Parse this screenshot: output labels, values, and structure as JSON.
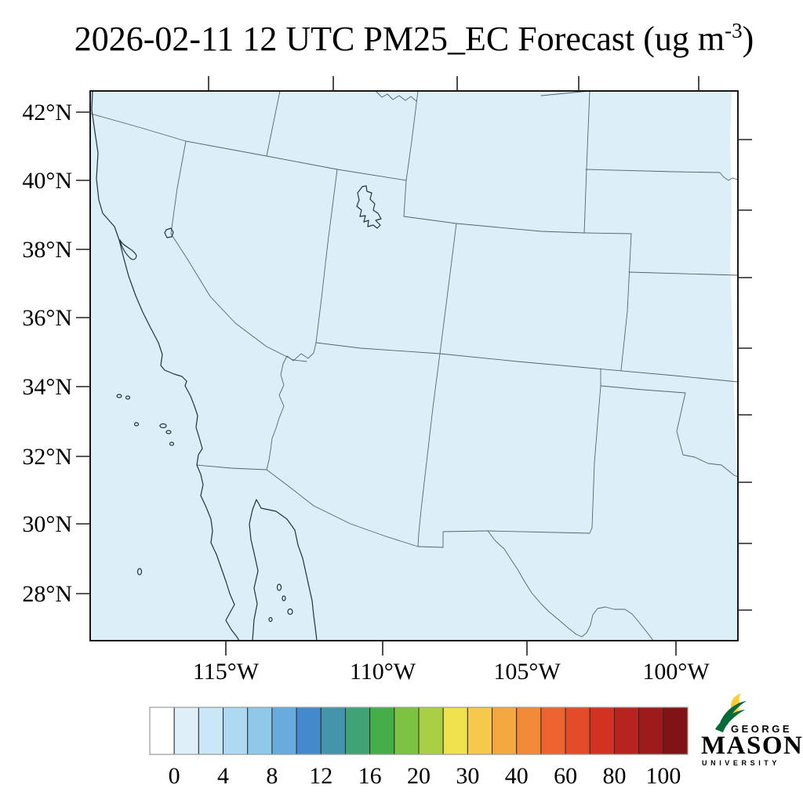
{
  "title": {
    "text": "2026-02-11 12 UTC PM25_EC Forecast (ug m",
    "superscript": "-3",
    "suffix": ")"
  },
  "map": {
    "background_color": "#dceef8",
    "frame_color": "#000000",
    "state_line_color": "#55656f",
    "coast_line_color": "#22333b",
    "no_data_strip_color": "#ffffff",
    "lat_labels": [
      {
        "text": "42°N"
      },
      {
        "text": "40°N"
      },
      {
        "text": "38°N"
      },
      {
        "text": "36°N"
      },
      {
        "text": "34°N"
      },
      {
        "text": "32°N"
      },
      {
        "text": "30°N"
      },
      {
        "text": "28°N"
      }
    ],
    "lon_labels": [
      {
        "text": "115°W"
      },
      {
        "text": "110°W"
      },
      {
        "text": "105°W"
      },
      {
        "text": "100°W"
      }
    ]
  },
  "colorbar": {
    "tick_labels": [
      "0",
      "4",
      "8",
      "12",
      "16",
      "20",
      "30",
      "40",
      "60",
      "80",
      "100"
    ],
    "colors": [
      "#ffffff",
      "#deeff9",
      "#c9e7f6",
      "#addaf2",
      "#8fc9ea",
      "#68acde",
      "#4489cc",
      "#4494ac",
      "#3fa376",
      "#46ae48",
      "#7cc342",
      "#a9cf45",
      "#f0e24f",
      "#f6c84c",
      "#f5a83f",
      "#f28a38",
      "#ee6430",
      "#e44b28",
      "#d33222",
      "#b72420",
      "#9d1b1b",
      "#7f1315"
    ],
    "cell_border_color": "#2a2a2a",
    "outline_color": "#9a9a9a"
  },
  "logo": {
    "line1": "GEORGE",
    "line2": "MASON",
    "line3": "UNIVERSITY",
    "green": "#046a38",
    "gold": "#ffcc33"
  }
}
